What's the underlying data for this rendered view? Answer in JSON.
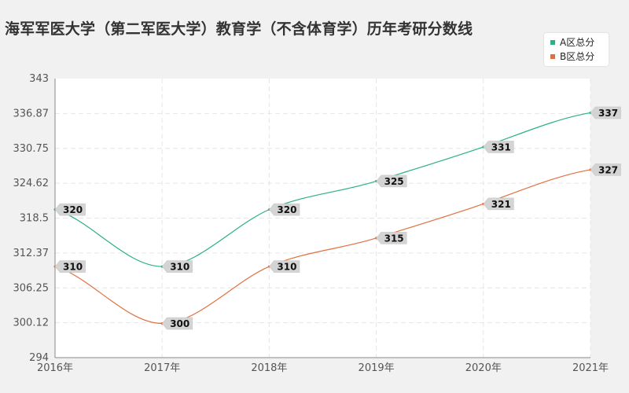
{
  "chart_data": {
    "type": "line",
    "title": "海军军医大学（第二军医大学）教育学（不含体育学）历年考研分数线",
    "categories": [
      "2016年",
      "2017年",
      "2018年",
      "2019年",
      "2020年",
      "2021年"
    ],
    "series": [
      {
        "name": "A区总分",
        "color": "#2ab08a",
        "values": [
          320,
          310,
          320,
          325,
          331,
          337
        ]
      },
      {
        "name": "B区总分",
        "color": "#e07040",
        "values": [
          310,
          300,
          310,
          315,
          321,
          327
        ]
      }
    ],
    "yticks": [
      "294",
      "300.12",
      "306.25",
      "312.37",
      "318.5",
      "324.62",
      "330.75",
      "336.87",
      "343"
    ],
    "ylim": [
      294,
      343
    ],
    "grid": true,
    "legend": "top-right"
  }
}
